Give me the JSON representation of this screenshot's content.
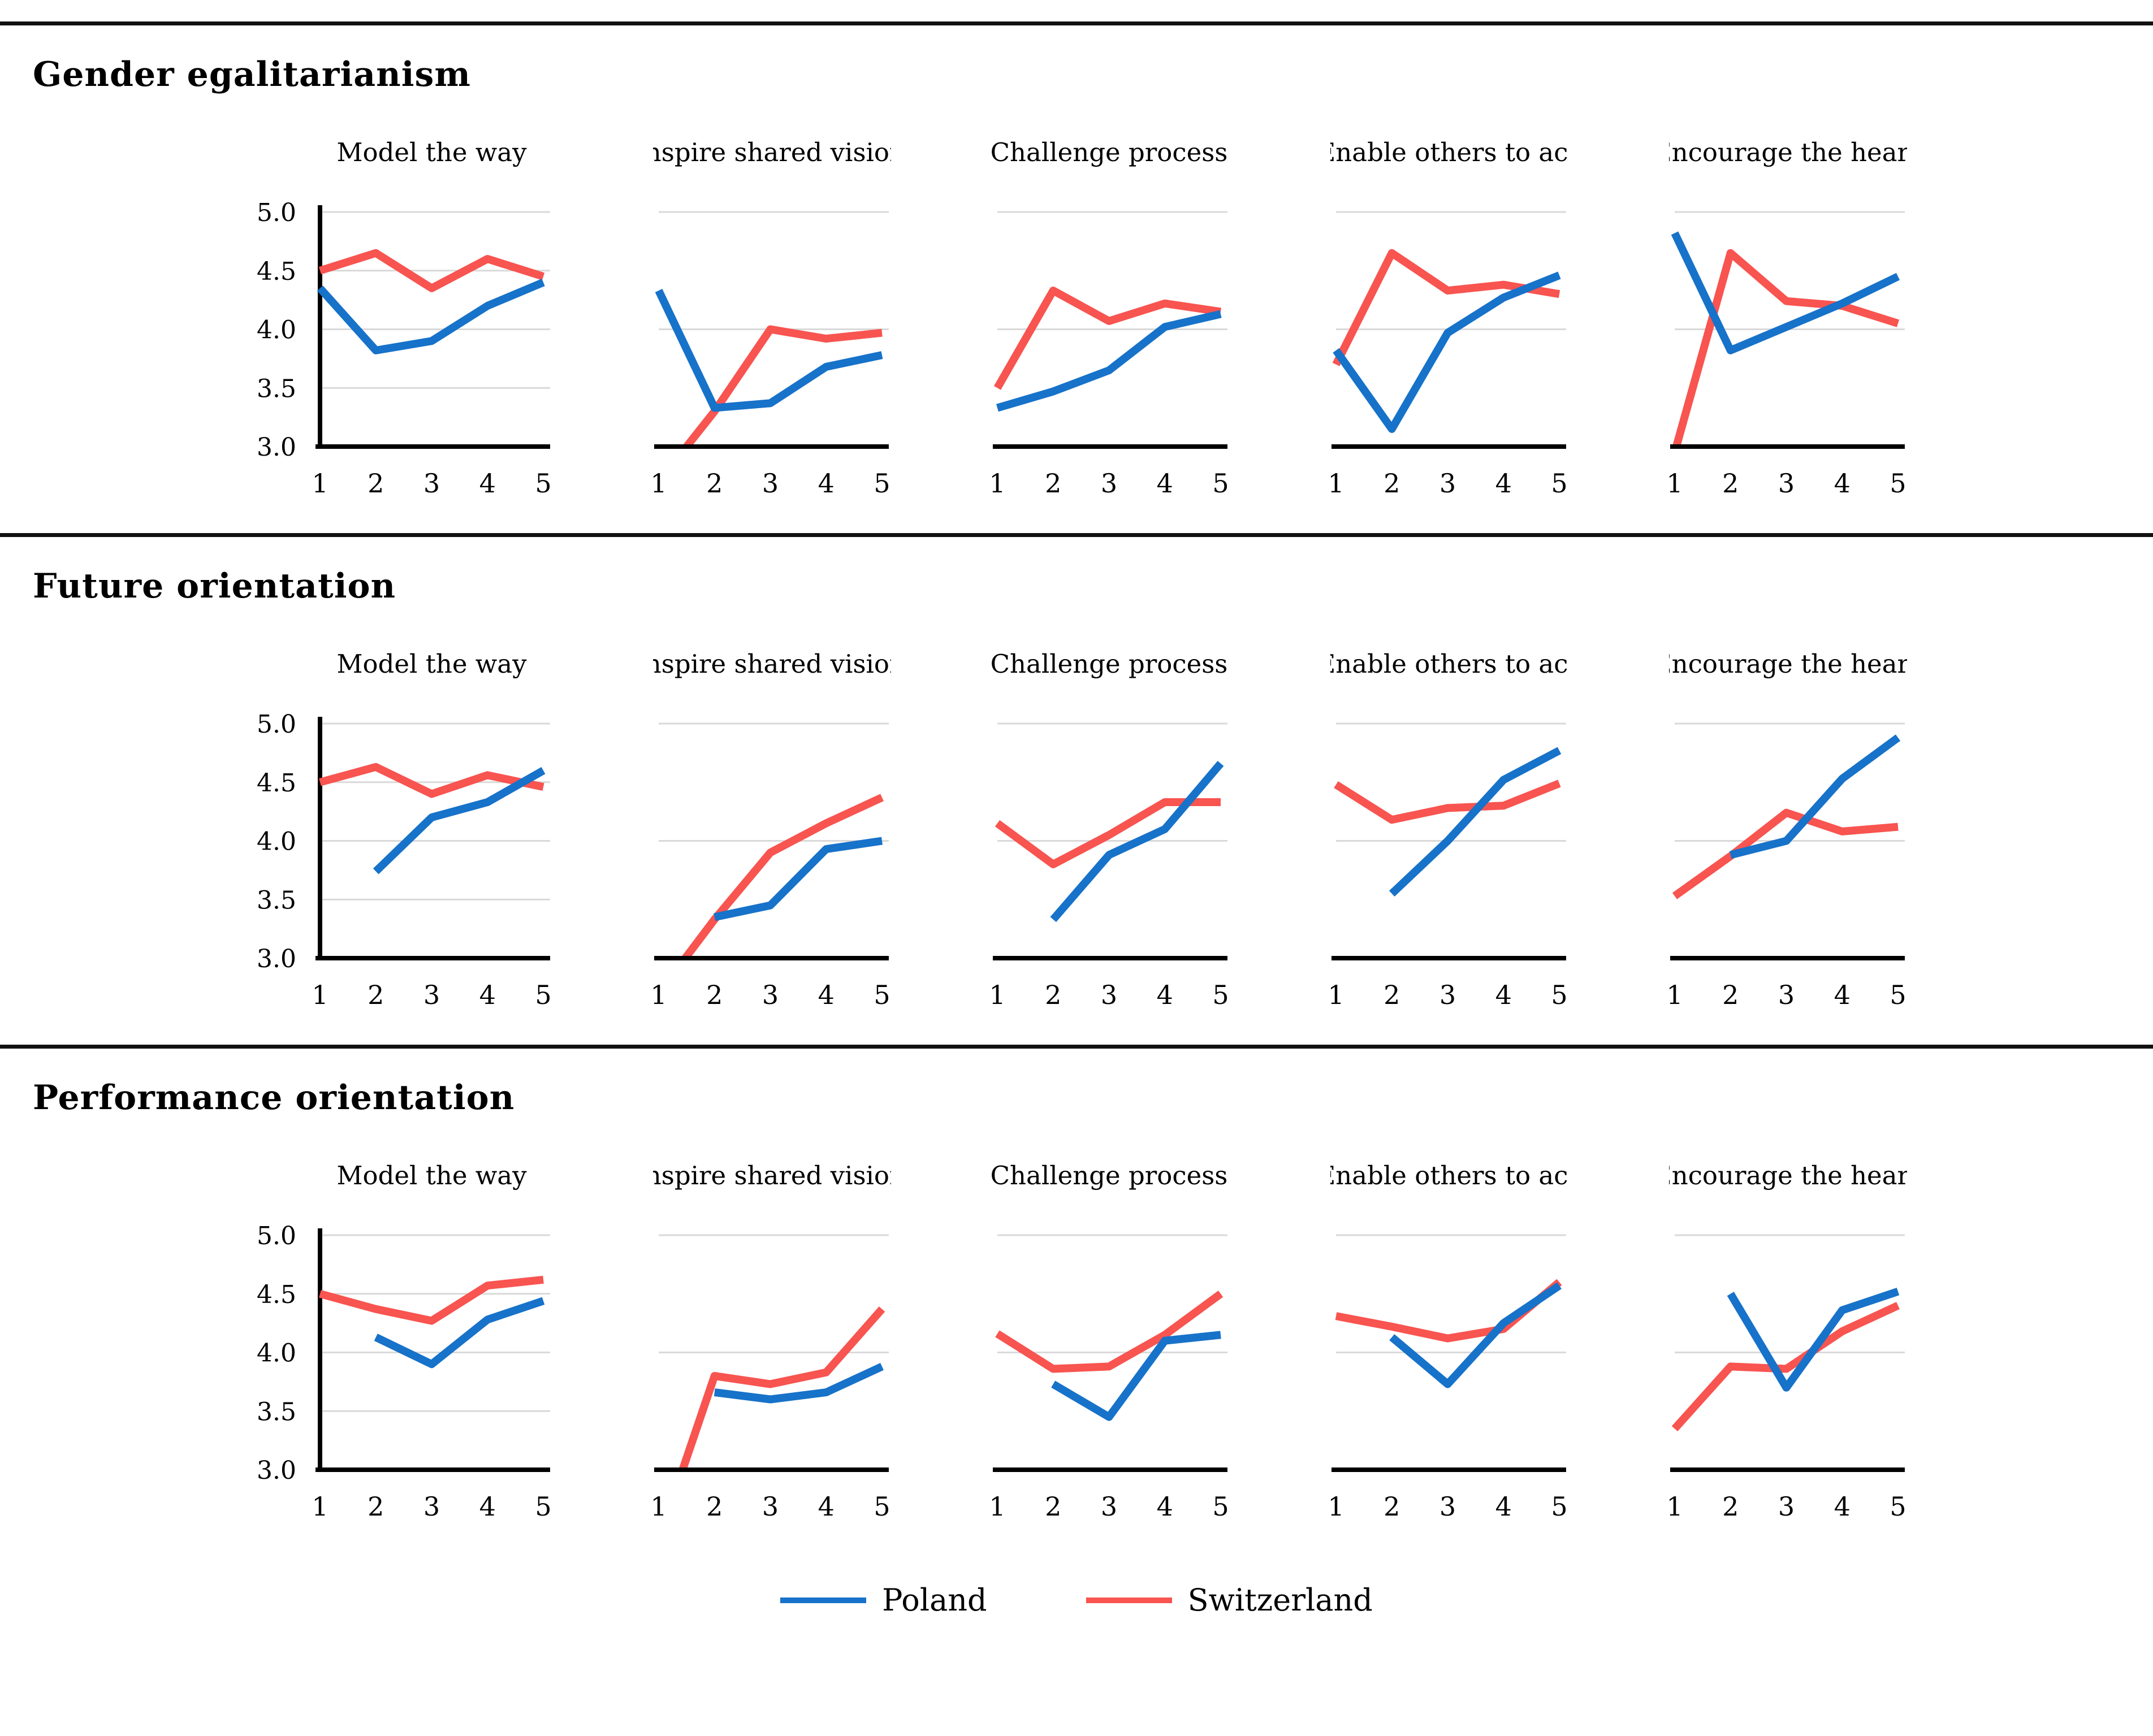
{
  "style": {
    "poland_color": "#1772c9",
    "switzerland_color": "#f85450",
    "gridline_color": "#d9d9d9",
    "axis_color": "#000000"
  },
  "legend": {
    "items": [
      {
        "label": "Poland",
        "color": "#1772c9"
      },
      {
        "label": "Switzerland",
        "color": "#f85450"
      }
    ]
  },
  "chart_data": {
    "type": "line",
    "x": [
      1,
      2,
      3,
      4,
      5
    ],
    "x_tick_labels": [
      "1",
      "2",
      "3",
      "4",
      "5"
    ],
    "ylim": [
      3.0,
      5.0
    ],
    "y_tick_labels": [
      "5.0",
      "4.5",
      "4.0",
      "3.5",
      "3.0"
    ],
    "y_ticks_shown_only_on_first_chart_of_row": true,
    "legend_position": "bottom-center",
    "series_names": [
      "Poland",
      "Switzerland"
    ],
    "note": "values below ylim bottom are clipped at the 3.0 axis; null = no data point",
    "sections": [
      {
        "title": "Gender egalitarianism",
        "charts": [
          {
            "title": "Model the way",
            "series": [
              {
                "name": "Poland",
                "values": [
                  4.35,
                  3.82,
                  3.9,
                  4.2,
                  4.4
                ]
              },
              {
                "name": "Switzerland",
                "values": [
                  4.5,
                  4.65,
                  4.35,
                  4.6,
                  4.45
                ]
              }
            ]
          },
          {
            "title": "Inspire shared vision",
            "series": [
              {
                "name": "Poland",
                "values": [
                  4.33,
                  3.33,
                  3.37,
                  3.68,
                  3.78
                ]
              },
              {
                "name": "Switzerland",
                "values": [
                  2.7,
                  3.3,
                  4.0,
                  3.92,
                  3.97
                ]
              }
            ]
          },
          {
            "title": "Challenge process",
            "series": [
              {
                "name": "Poland",
                "values": [
                  3.33,
                  3.47,
                  3.65,
                  4.02,
                  4.13
                ]
              },
              {
                "name": "Switzerland",
                "values": [
                  3.5,
                  4.33,
                  4.07,
                  4.22,
                  4.15
                ]
              }
            ]
          },
          {
            "title": "Enable others to act",
            "series": [
              {
                "name": "Poland",
                "values": [
                  3.82,
                  3.15,
                  3.97,
                  4.27,
                  4.46
                ]
              },
              {
                "name": "Switzerland",
                "values": [
                  3.7,
                  4.65,
                  4.33,
                  4.38,
                  4.3
                ]
              }
            ]
          },
          {
            "title": "Encourage the heart",
            "series": [
              {
                "name": "Poland",
                "values": [
                  4.82,
                  3.82,
                  4.02,
                  4.22,
                  4.45
                ]
              },
              {
                "name": "Switzerland",
                "values": [
                  2.95,
                  4.65,
                  4.24,
                  4.2,
                  4.05
                ]
              }
            ]
          }
        ]
      },
      {
        "title": "Future orientation",
        "charts": [
          {
            "title": "Model the way",
            "series": [
              {
                "name": "Poland",
                "values": [
                  null,
                  3.74,
                  4.2,
                  4.33,
                  4.6
                ]
              },
              {
                "name": "Switzerland",
                "values": [
                  4.5,
                  4.63,
                  4.4,
                  4.56,
                  4.46
                ]
              }
            ]
          },
          {
            "title": "Inspire shared vision",
            "series": [
              {
                "name": "Poland",
                "values": [
                  null,
                  3.35,
                  3.45,
                  3.93,
                  4.0
                ]
              },
              {
                "name": "Switzerland",
                "values": [
                  2.7,
                  3.33,
                  3.9,
                  4.15,
                  4.37
                ]
              }
            ]
          },
          {
            "title": "Challenge process",
            "series": [
              {
                "name": "Poland",
                "values": [
                  null,
                  3.33,
                  3.88,
                  4.1,
                  4.66
                ]
              },
              {
                "name": "Switzerland",
                "values": [
                  4.15,
                  3.8,
                  4.05,
                  4.33,
                  4.33
                ]
              }
            ]
          },
          {
            "title": "Enable others to act",
            "series": [
              {
                "name": "Poland",
                "values": [
                  null,
                  3.55,
                  4.0,
                  4.52,
                  4.77
                ]
              },
              {
                "name": "Switzerland",
                "values": [
                  4.48,
                  4.18,
                  4.28,
                  4.3,
                  4.49
                ]
              }
            ]
          },
          {
            "title": "Encourage the heart",
            "series": [
              {
                "name": "Poland",
                "values": [
                  null,
                  3.88,
                  4.0,
                  4.53,
                  4.88
                ]
              },
              {
                "name": "Switzerland",
                "values": [
                  3.53,
                  3.87,
                  4.24,
                  4.08,
                  4.12
                ]
              }
            ]
          }
        ]
      },
      {
        "title": "Performance orientation",
        "charts": [
          {
            "title": "Model the way",
            "series": [
              {
                "name": "Poland",
                "values": [
                  null,
                  4.13,
                  3.9,
                  4.28,
                  4.44
                ]
              },
              {
                "name": "Switzerland",
                "values": [
                  4.5,
                  4.37,
                  4.27,
                  4.57,
                  4.62
                ]
              }
            ]
          },
          {
            "title": "Inspire shared vision",
            "series": [
              {
                "name": "Poland",
                "values": [
                  null,
                  3.66,
                  3.6,
                  3.66,
                  3.88
                ]
              },
              {
                "name": "Switzerland",
                "values": [
                  2.4,
                  3.8,
                  3.73,
                  3.83,
                  4.37
                ]
              }
            ]
          },
          {
            "title": "Challenge process",
            "series": [
              {
                "name": "Poland",
                "values": [
                  null,
                  3.73,
                  3.45,
                  4.1,
                  4.15
                ]
              },
              {
                "name": "Switzerland",
                "values": [
                  4.16,
                  3.86,
                  3.88,
                  4.15,
                  4.5
                ]
              }
            ]
          },
          {
            "title": "Enable others to act",
            "series": [
              {
                "name": "Poland",
                "values": [
                  null,
                  4.13,
                  3.73,
                  4.25,
                  4.57
                ]
              },
              {
                "name": "Switzerland",
                "values": [
                  4.31,
                  4.22,
                  4.12,
                  4.2,
                  4.6
                ]
              }
            ]
          },
          {
            "title": "Encourage the heart",
            "series": [
              {
                "name": "Poland",
                "values": [
                  null,
                  4.5,
                  3.7,
                  4.36,
                  4.52
                ]
              },
              {
                "name": "Switzerland",
                "values": [
                  3.35,
                  3.88,
                  3.86,
                  4.18,
                  4.4
                ]
              }
            ]
          }
        ]
      }
    ]
  }
}
